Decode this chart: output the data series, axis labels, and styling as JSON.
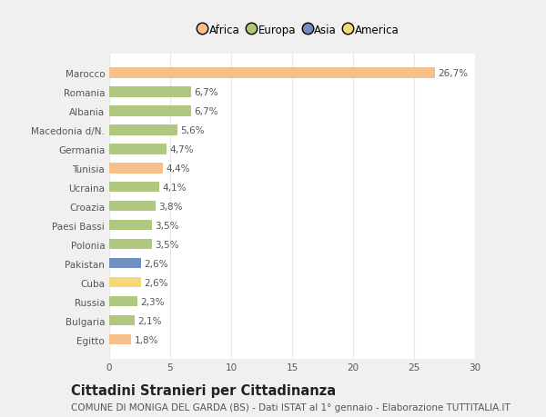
{
  "categories": [
    "Marocco",
    "Romania",
    "Albania",
    "Macedonia d/N.",
    "Germania",
    "Tunisia",
    "Ucraina",
    "Croazia",
    "Paesi Bassi",
    "Polonia",
    "Pakistan",
    "Cuba",
    "Russia",
    "Bulgaria",
    "Egitto"
  ],
  "values": [
    26.7,
    6.7,
    6.7,
    5.6,
    4.7,
    4.4,
    4.1,
    3.8,
    3.5,
    3.5,
    2.6,
    2.6,
    2.3,
    2.1,
    1.8
  ],
  "labels": [
    "26,7%",
    "6,7%",
    "6,7%",
    "5,6%",
    "4,7%",
    "4,4%",
    "4,1%",
    "3,8%",
    "3,5%",
    "3,5%",
    "2,6%",
    "2,6%",
    "2,3%",
    "2,1%",
    "1,8%"
  ],
  "colors": [
    "#f5c08a",
    "#afc77e",
    "#afc77e",
    "#afc77e",
    "#afc77e",
    "#f5c08a",
    "#afc77e",
    "#afc77e",
    "#afc77e",
    "#afc77e",
    "#7090bf",
    "#f5d878",
    "#afc77e",
    "#afc77e",
    "#f5c08a"
  ],
  "legend_labels": [
    "Africa",
    "Europa",
    "Asia",
    "America"
  ],
  "legend_colors": [
    "#f5c08a",
    "#afc77e",
    "#7090bf",
    "#f5d878"
  ],
  "xlim": [
    0,
    30
  ],
  "xticks": [
    0,
    5,
    10,
    15,
    20,
    25,
    30
  ],
  "title": "Cittadini Stranieri per Cittadinanza",
  "subtitle": "COMUNE DI MONIGA DEL GARDA (BS) - Dati ISTAT al 1° gennaio - Elaborazione TUTTITALIA.IT",
  "fig_bg_color": "#f0f0f0",
  "plot_bg_color": "#ffffff",
  "grid_color": "#e8e8e8",
  "bar_height": 0.55,
  "label_fontsize": 7.5,
  "tick_fontsize": 7.5,
  "title_fontsize": 10.5,
  "subtitle_fontsize": 7.5
}
